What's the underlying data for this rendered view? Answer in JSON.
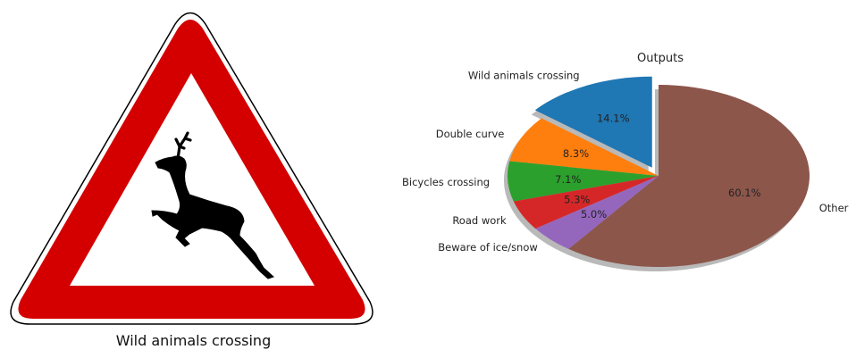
{
  "sign": {
    "caption": "Wild animals crossing",
    "colors": {
      "border": "#d40000",
      "inner": "#ffffff",
      "silhouette": "#000000",
      "outline": "#000000"
    },
    "icon": "deer-icon"
  },
  "chart_data": {
    "type": "pie",
    "title": "Outputs",
    "categories": [
      "Wild animals crossing",
      "Double curve",
      "Bicycles crossing",
      "Road work",
      "Beware of ice/snow",
      "Other"
    ],
    "values": [
      14.1,
      8.3,
      7.1,
      5.3,
      5.0,
      60.1
    ],
    "value_labels": [
      "14.1%",
      "8.3%",
      "7.1%",
      "5.3%",
      "5.0%",
      "60.1%"
    ],
    "colors": [
      "#1f77b4",
      "#ff7f0e",
      "#2ca02c",
      "#d62728",
      "#9467bd",
      "#8c564b"
    ],
    "explode": [
      0.1,
      0,
      0,
      0,
      0,
      0
    ],
    "startangle": 90,
    "counterclock": true,
    "shadow": true
  }
}
